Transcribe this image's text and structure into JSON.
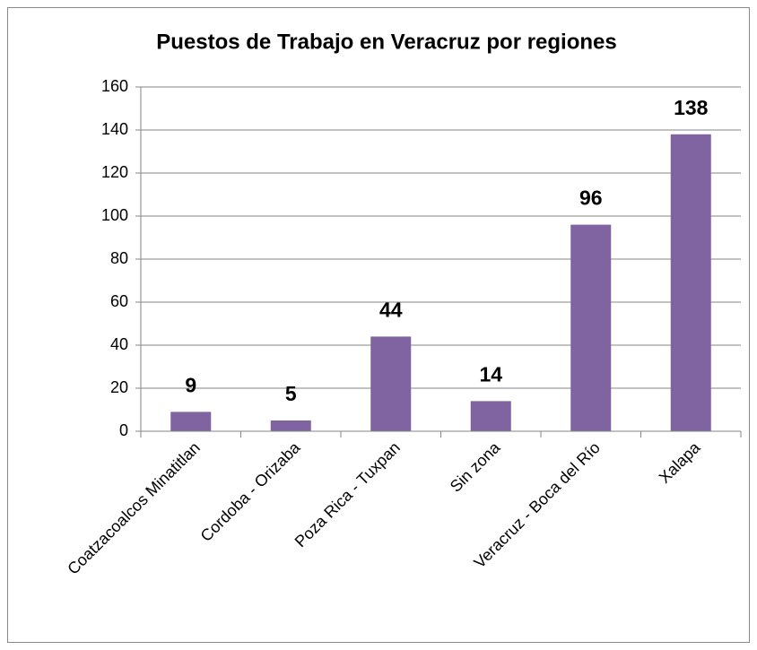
{
  "chart_data": {
    "type": "bar",
    "title": "Puestos de Trabajo en Veracruz por regiones",
    "categories": [
      "Coatzacoalcos Minatitlan",
      "Cordoba - Orizaba",
      "Poza Rica - Tuxpan",
      "Sin zona",
      "Veracruz - Boca del Río",
      "Xalapa"
    ],
    "values": [
      9,
      5,
      44,
      14,
      96,
      138
    ],
    "color": "#8064a2",
    "ylim": [
      0,
      160
    ],
    "yticks": [
      0,
      20,
      40,
      60,
      80,
      100,
      120,
      140,
      160
    ],
    "grid": true
  }
}
